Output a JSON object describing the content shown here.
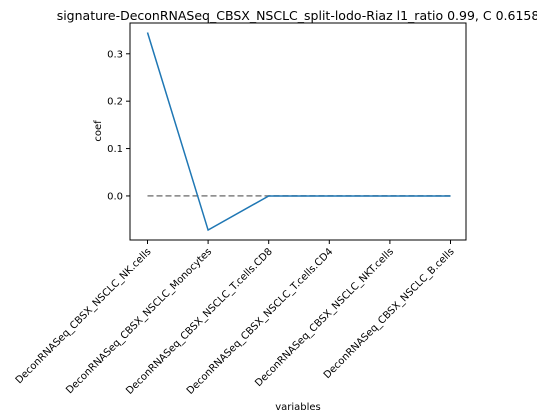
{
  "chart_data": {
    "type": "line",
    "title": "signature-DeconRNASeq_CBSX_NSCLC_split-lodo-Riaz l1_ratio 0.99, C 0.6158",
    "xlabel": "variables",
    "ylabel": "coef",
    "categories": [
      "DeconRNASeq_CBSX_NSCLC_NK.cells",
      "DeconRNASeq_CBSX_NSCLC_Monocytes",
      "DeconRNASeq_CBSX_NSCLC_T.cells.CD8",
      "DeconRNASeq_CBSX_NSCLC_T.cells.CD4",
      "DeconRNASeq_CBSX_NSCLC_NKT.cells",
      "DeconRNASeq_CBSX_NSCLC_B.cells"
    ],
    "series": [
      {
        "name": "coef",
        "values": [
          0.345,
          -0.072,
          0.0,
          0.0,
          0.0,
          0.0
        ],
        "color": "#1f77b4",
        "style": "solid"
      }
    ],
    "reference_line": {
      "y": 0.0,
      "color": "#808080",
      "style": "dashed"
    },
    "ylim": [
      -0.093,
      0.365
    ],
    "yticks": [
      0.0,
      0.1,
      0.2,
      0.3
    ],
    "ytick_labels": [
      "0.0",
      "0.1",
      "0.2",
      "0.3"
    ],
    "grid": false
  }
}
